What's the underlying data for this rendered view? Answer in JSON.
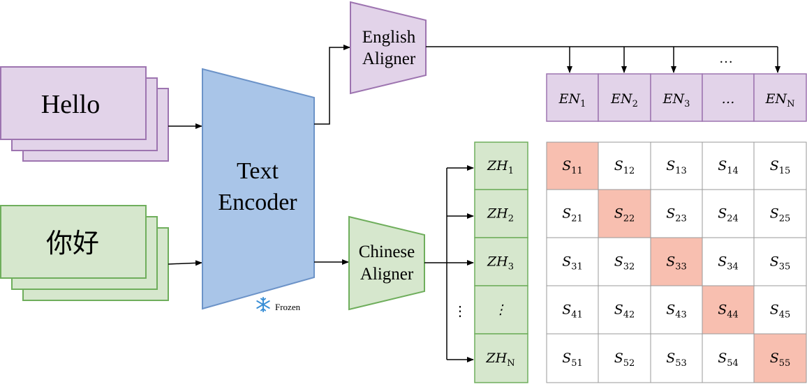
{
  "inputs": {
    "english_text": "Hello",
    "chinese_text": "你好"
  },
  "encoder": {
    "label_line1": "Text",
    "label_line2": "Encoder",
    "frozen_label": "Frozen"
  },
  "english_aligner": {
    "label_line1": "English",
    "label_line2": "Aligner"
  },
  "chinese_aligner": {
    "label_line1": "Chinese",
    "label_line2": "Aligner"
  },
  "en_tokens": [
    {
      "base": "EN",
      "sub": "1"
    },
    {
      "base": "EN",
      "sub": "2"
    },
    {
      "base": "EN",
      "sub": "3"
    },
    {
      "base": "…",
      "sub": ""
    },
    {
      "base": "EN",
      "sub": "N"
    }
  ],
  "en_arrow_ellipsis": "…",
  "zh_tokens": [
    {
      "base": "ZH",
      "sub": "1"
    },
    {
      "base": "ZH",
      "sub": "2"
    },
    {
      "base": "ZH",
      "sub": "3"
    },
    {
      "base": "⋮",
      "sub": ""
    },
    {
      "base": "ZH",
      "sub": "N"
    }
  ],
  "zh_arrow_ellipsis": "⋮",
  "similarity": {
    "symbol": "S",
    "subscripts": [
      [
        "11",
        "12",
        "13",
        "14",
        "15"
      ],
      [
        "21",
        "22",
        "23",
        "24",
        "25"
      ],
      [
        "31",
        "32",
        "33",
        "34",
        "35"
      ],
      [
        "41",
        "42",
        "43",
        "44",
        "45"
      ],
      [
        "51",
        "52",
        "53",
        "54",
        "55"
      ]
    ],
    "highlight_color": "#f8bfb0"
  },
  "colors": {
    "purple_fill": "#e2d3e9",
    "purple_stroke": "#9d74b0",
    "green_fill": "#d6e7cd",
    "green_stroke": "#6fae5c",
    "blue_fill": "#a9c5e8",
    "blue_stroke": "#6c93c8"
  }
}
